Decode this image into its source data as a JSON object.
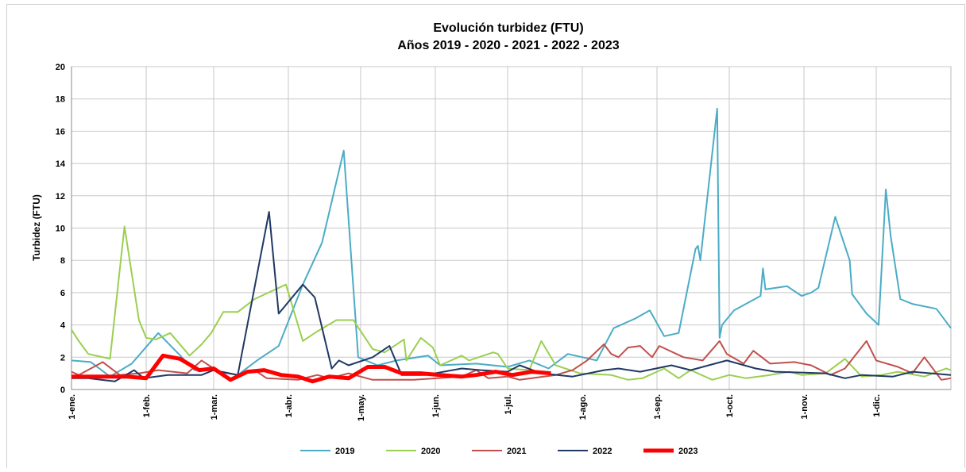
{
  "chart_data": {
    "type": "line",
    "title": "Evolución turbidez (FTU)",
    "subtitle": "Años 2019 - 2020 - 2021 - 2022 - 2023",
    "y_label": "Turbidez (FTU)",
    "xlim": [
      1,
      366
    ],
    "xticks": [
      {
        "value": 1,
        "label": "1-ene."
      },
      {
        "value": 32,
        "label": "1-feb."
      },
      {
        "value": 60,
        "label": "1-mar."
      },
      {
        "value": 91,
        "label": "1-abr."
      },
      {
        "value": 121,
        "label": "1-may."
      },
      {
        "value": 152,
        "label": "1-jun."
      },
      {
        "value": 182,
        "label": "1-jul."
      },
      {
        "value": 213,
        "label": "1-ago."
      },
      {
        "value": 244,
        "label": "1-sep."
      },
      {
        "value": 274,
        "label": "1-oct."
      },
      {
        "value": 305,
        "label": "1-nov."
      },
      {
        "value": 335,
        "label": "1-dic."
      }
    ],
    "ylim": [
      0,
      20
    ],
    "yticks": [
      0,
      2,
      4,
      6,
      8,
      10,
      12,
      14,
      16,
      18,
      20
    ],
    "grid": true,
    "legend": "bottom",
    "series": [
      {
        "name": "2019",
        "color": "#4bacc6",
        "width": 2,
        "x": [
          1,
          9,
          17,
          26,
          37,
          52,
          60,
          70,
          78,
          87,
          97,
          105,
          114,
          120,
          128,
          136,
          149,
          154,
          169,
          182,
          191,
          199,
          207,
          219,
          226,
          235,
          241,
          247,
          253,
          260,
          261,
          262,
          269,
          270,
          271,
          276,
          287,
          288,
          289,
          298,
          304,
          308,
          311,
          318,
          324,
          325,
          331,
          336,
          339,
          341,
          345,
          350,
          360,
          366
        ],
        "values": [
          1.8,
          1.7,
          0.8,
          1.6,
          3.5,
          1.2,
          1.2,
          0.9,
          1.8,
          2.7,
          6.5,
          9.1,
          14.8,
          2.0,
          1.5,
          1.8,
          2.1,
          1.5,
          1.6,
          1.4,
          1.8,
          1.3,
          2.2,
          1.8,
          3.8,
          4.4,
          4.9,
          3.3,
          3.5,
          8.7,
          8.9,
          8.0,
          17.4,
          3.2,
          4.0,
          4.9,
          5.8,
          7.5,
          6.2,
          6.4,
          5.8,
          6.0,
          6.3,
          10.7,
          8.0,
          5.9,
          4.7,
          4.0,
          12.4,
          9.5,
          5.6,
          5.3,
          5.0,
          3.8
        ]
      },
      {
        "name": "2020",
        "color": "#9bcf4f",
        "width": 2,
        "x": [
          1,
          4,
          8,
          17,
          23,
          29,
          32,
          36,
          42,
          50,
          55,
          59,
          64,
          70,
          77,
          90,
          97,
          103,
          111,
          118,
          126,
          131,
          139,
          140,
          146,
          151,
          154,
          163,
          166,
          176,
          178,
          182,
          191,
          196,
          202,
          212,
          225,
          232,
          238,
          247,
          253,
          258,
          267,
          274,
          281,
          291,
          299,
          304,
          314,
          322,
          329,
          337,
          344,
          355,
          364,
          366
        ],
        "values": [
          3.7,
          3.0,
          2.2,
          1.9,
          10.1,
          4.3,
          3.2,
          3.1,
          3.5,
          2.1,
          2.8,
          3.5,
          4.8,
          4.8,
          5.6,
          6.5,
          3.0,
          3.6,
          4.3,
          4.3,
          2.5,
          2.3,
          3.1,
          1.8,
          3.2,
          2.6,
          1.5,
          2.1,
          1.8,
          2.3,
          2.2,
          1.3,
          1.2,
          3.0,
          1.5,
          1.0,
          0.9,
          0.6,
          0.7,
          1.3,
          0.7,
          1.2,
          0.6,
          0.9,
          0.7,
          0.9,
          1.1,
          0.9,
          1.0,
          1.9,
          0.8,
          0.9,
          1.1,
          0.8,
          1.3,
          1.2
        ]
      },
      {
        "name": "2021",
        "color": "#c0504d",
        "width": 2,
        "x": [
          1,
          4,
          14,
          21,
          29,
          37,
          49,
          55,
          62,
          70,
          77,
          82,
          95,
          103,
          108,
          116,
          126,
          143,
          153,
          163,
          169,
          174,
          182,
          187,
          202,
          209,
          215,
          222,
          225,
          228,
          232,
          237,
          242,
          245,
          255,
          263,
          270,
          273,
          280,
          284,
          291,
          301,
          308,
          316,
          322,
          331,
          335,
          344,
          350,
          355,
          362,
          366
        ],
        "values": [
          1.1,
          0.9,
          1.7,
          0.9,
          1.0,
          1.2,
          1.0,
          1.8,
          1.1,
          0.9,
          1.2,
          0.7,
          0.6,
          0.9,
          0.7,
          1.0,
          0.6,
          0.6,
          0.7,
          0.8,
          1.2,
          0.7,
          0.8,
          0.6,
          0.9,
          1.2,
          1.8,
          2.8,
          2.2,
          2.0,
          2.6,
          2.7,
          2.0,
          2.7,
          2.0,
          1.8,
          3.0,
          2.2,
          1.6,
          2.4,
          1.6,
          1.7,
          1.5,
          0.9,
          1.3,
          3.0,
          1.8,
          1.4,
          1.0,
          2.0,
          0.6,
          0.7
        ]
      },
      {
        "name": "2022",
        "color": "#1f3864",
        "width": 2,
        "x": [
          1,
          8,
          19,
          27,
          31,
          41,
          49,
          55,
          60,
          70,
          83,
          87,
          97,
          102,
          109,
          112,
          116,
          126,
          133,
          138,
          148,
          163,
          171,
          182,
          187,
          196,
          209,
          222,
          228,
          237,
          250,
          258,
          273,
          285,
          293,
          314,
          322,
          329,
          342,
          350,
          366
        ],
        "values": [
          0.7,
          0.7,
          0.5,
          1.2,
          0.7,
          0.9,
          0.9,
          0.9,
          1.2,
          0.9,
          11.0,
          4.7,
          6.5,
          5.7,
          1.3,
          1.8,
          1.5,
          2.0,
          2.7,
          0.9,
          0.9,
          1.3,
          1.2,
          1.1,
          1.5,
          1.0,
          0.8,
          1.2,
          1.3,
          1.1,
          1.5,
          1.2,
          1.8,
          1.3,
          1.1,
          1.0,
          0.7,
          0.9,
          0.8,
          1.1,
          0.9
        ]
      },
      {
        "name": "2023",
        "color": "#ff0000",
        "width": 5,
        "x": [
          1,
          14,
          24,
          32,
          39,
          46,
          54,
          60,
          67,
          74,
          81,
          88,
          95,
          101,
          108,
          116,
          124,
          131,
          138,
          146,
          154,
          163,
          169,
          177,
          184,
          192,
          200
        ],
        "values": [
          0.8,
          0.8,
          0.8,
          0.7,
          2.1,
          1.9,
          1.2,
          1.3,
          0.6,
          1.1,
          1.2,
          0.9,
          0.8,
          0.5,
          0.8,
          0.7,
          1.4,
          1.4,
          1.0,
          1.0,
          0.9,
          0.8,
          0.9,
          1.1,
          0.9,
          1.1,
          1.0
        ]
      }
    ]
  }
}
